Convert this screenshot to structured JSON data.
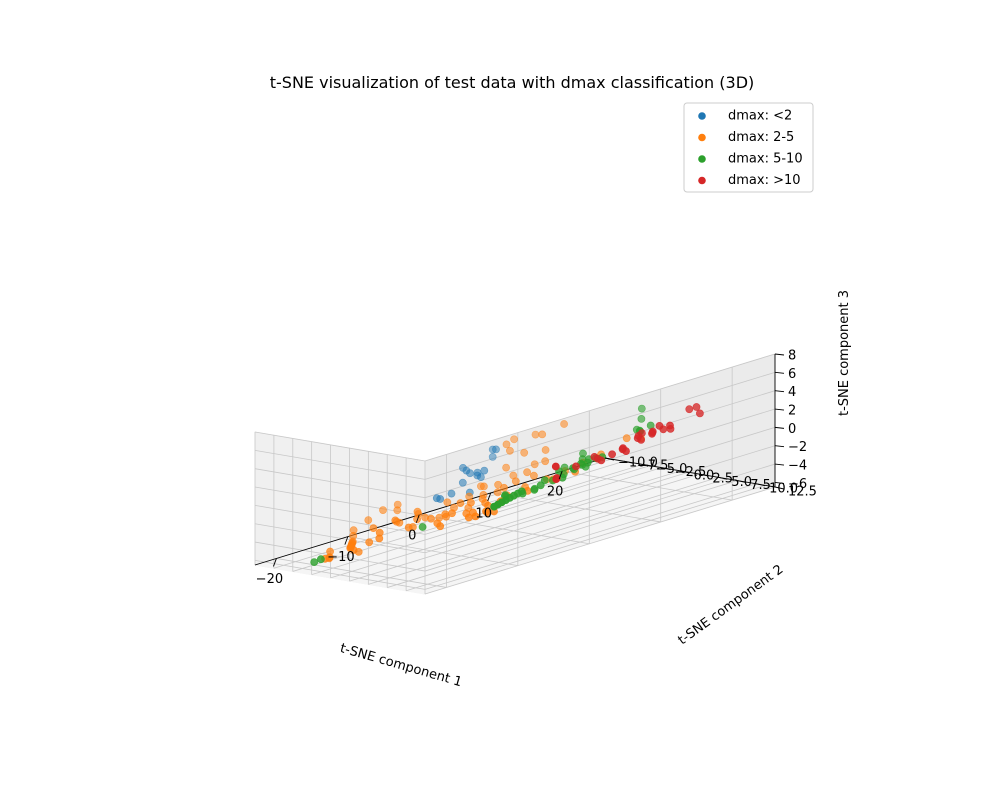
{
  "chart_data": {
    "type": "scatter",
    "projection": "3d",
    "title": "t-SNE visualization of test data with dmax classification (3D)",
    "xlabel": "t-SNE component 1",
    "ylabel": "t-SNE component 2",
    "zlabel": "t-SNE component 3",
    "xlim": [
      -23,
      26
    ],
    "ylim": [
      -10,
      12.5
    ],
    "zlim": [
      -6.5,
      8
    ],
    "x_ticks": [
      "−20",
      "−10",
      "0",
      "10",
      "20"
    ],
    "y_ticks": [
      "−10.0",
      "−7.5",
      "−5.0",
      "−2.5",
      "0.0",
      "2.5",
      "5.0",
      "7.5",
      "10.0",
      "12.5"
    ],
    "z_ticks": [
      "−6",
      "−4",
      "−2",
      "0",
      "2",
      "4",
      "6",
      "8"
    ],
    "grid": true,
    "legend_position": "top-right",
    "series": [
      {
        "name": "dmax: <2",
        "color": "#1f77b4",
        "points": [
          [
            -13.0,
            12.0,
            6.8
          ],
          [
            -12.0,
            11.5,
            6.5
          ],
          [
            -13.0,
            12.0,
            6.0
          ],
          [
            -14.5,
            9.5,
            4.8
          ],
          [
            -13.5,
            9.0,
            4.2
          ],
          [
            -13.0,
            10.0,
            4.0
          ],
          [
            -12.5,
            9.5,
            3.5
          ],
          [
            -12.0,
            9.5,
            3.2
          ],
          [
            -11.0,
            9.0,
            3.6
          ],
          [
            -13.0,
            9.0,
            3.8
          ],
          [
            -14.0,
            9.0,
            3.0
          ],
          [
            -12.5,
            8.5,
            1.5
          ],
          [
            -14.0,
            7.5,
            1.6
          ],
          [
            -15.0,
            6.5,
            1.2
          ],
          [
            -14.0,
            6.0,
            0.8
          ]
        ]
      },
      {
        "name": "dmax: 2-5",
        "color": "#ff7f0e",
        "points": [
          [
            -10.0,
            12.0,
            7.2
          ],
          [
            -7.0,
            12.0,
            7.0
          ],
          [
            -3.0,
            12.0,
            7.2
          ],
          [
            -10.0,
            11.0,
            6.5
          ],
          [
            -5.0,
            11.0,
            6.4
          ],
          [
            -9.0,
            10.5,
            5.5
          ],
          [
            -7.0,
            10.5,
            4.8
          ],
          [
            -4.0,
            10.5,
            4.4
          ],
          [
            -9.0,
            10.0,
            3.6
          ],
          [
            -8.0,
            10.0,
            2.5
          ],
          [
            -5.0,
            10.0,
            3.0
          ],
          [
            -12.0,
            9.5,
            2.2
          ],
          [
            -10.0,
            8.0,
            1.5
          ],
          [
            -8.0,
            8.0,
            1.2
          ],
          [
            -5.0,
            9.0,
            2.0
          ],
          [
            -3.0,
            9.5,
            2.8
          ],
          [
            -11.0,
            7.0,
            0.5
          ],
          [
            -9.0,
            7.0,
            0.2
          ],
          [
            -7.0,
            7.0,
            0.0
          ],
          [
            -5.0,
            7.5,
            0.8
          ],
          [
            -3.0,
            8.0,
            1.0
          ],
          [
            -13.0,
            6.0,
            0.2
          ],
          [
            -11.0,
            5.0,
            -1.0
          ],
          [
            -9.0,
            5.0,
            -1.5
          ],
          [
            -7.0,
            5.0,
            -1.0
          ],
          [
            -16.0,
            5.0,
            -0.5
          ],
          [
            -18.0,
            4.0,
            -1.0
          ],
          [
            -14.0,
            4.0,
            -1.5
          ],
          [
            -12.0,
            4.0,
            -2.0
          ],
          [
            -10.0,
            3.0,
            -2.5
          ],
          [
            -20.0,
            6.0,
            1.0
          ],
          [
            -22.0,
            6.0,
            1.5
          ],
          [
            -21.0,
            7.0,
            2.0
          ],
          [
            -23.0,
            5.0,
            0.5
          ],
          [
            -24.0,
            4.0,
            -0.5
          ],
          [
            -23.0,
            3.0,
            -1.5
          ],
          [
            -22.0,
            2.0,
            -2.5
          ],
          [
            -21.0,
            1.0,
            -3.0
          ],
          [
            -20.0,
            0.0,
            -3.5
          ],
          [
            -19.0,
            -1.0,
            -4.0
          ],
          [
            -18.0,
            -2.0,
            -4.5
          ],
          [
            -17.0,
            -3.0,
            -5.0
          ],
          [
            -16.0,
            -4.0,
            -5.5
          ],
          [
            -15.0,
            -4.5,
            -6.0
          ],
          [
            -17.0,
            0.0,
            -2.5
          ],
          [
            -15.0,
            1.0,
            -2.0
          ],
          [
            -13.0,
            2.0,
            -2.2
          ],
          [
            -16.0,
            2.5,
            -1.8
          ],
          [
            -14.0,
            3.0,
            -1.0
          ],
          [
            -18.0,
            -1.0,
            -5.0
          ],
          [
            -16.0,
            -1.5,
            -4.5
          ],
          [
            -14.0,
            -2.0,
            -4.0
          ],
          [
            -13.0,
            -3.0,
            -5.0
          ],
          [
            -20.0,
            -3.0,
            -5.5
          ],
          [
            -21.0,
            -2.0,
            -5.0
          ],
          [
            -22.0,
            -1.0,
            -4.0
          ],
          [
            -19.0,
            -4.5,
            -6.0
          ],
          [
            -12.0,
            0.5,
            -3.5
          ],
          [
            -10.0,
            1.0,
            -3.0
          ],
          [
            -11.0,
            -1.0,
            -4.0
          ],
          [
            -8.0,
            1.0,
            -3.0
          ],
          [
            -6.0,
            2.5,
            -2.0
          ],
          [
            -4.0,
            2.5,
            -2.5
          ],
          [
            -2.0,
            3.5,
            -2.0
          ],
          [
            0.0,
            4.0,
            -1.5
          ],
          [
            2.0,
            5.0,
            -1.0
          ],
          [
            4.0,
            5.5,
            -0.5
          ],
          [
            -4.0,
            0.0,
            -4.0
          ],
          [
            -2.0,
            -1.0,
            -4.5
          ],
          [
            0.0,
            -1.0,
            -5.0
          ],
          [
            2.0,
            -2.0,
            -5.5
          ],
          [
            4.0,
            -3.0,
            -5.0
          ],
          [
            3.0,
            -4.0,
            -6.0
          ],
          [
            1.0,
            -3.5,
            -6.0
          ],
          [
            -1.0,
            -2.5,
            -5.5
          ],
          [
            -2.0,
            1.0,
            -3.5
          ],
          [
            -6.0,
            0.0,
            -3.5
          ],
          [
            -7.0,
            -1.0,
            -4.5
          ],
          [
            -5.0,
            -2.5,
            -5.5
          ],
          [
            6.0,
            6.0,
            0.0
          ],
          [
            8.0,
            6.5,
            0.5
          ],
          [
            10.0,
            8.0,
            2.0
          ],
          [
            12.0,
            8.0,
            1.5
          ],
          [
            -8.0,
            3.0,
            -1.5
          ],
          [
            5.0,
            3.0,
            -2.0
          ],
          [
            7.0,
            4.0,
            -1.5
          ],
          [
            3.0,
            1.5,
            -3.0
          ],
          [
            -4.0,
            5.0,
            -0.5
          ]
        ]
      },
      {
        "name": "dmax: 5-10",
        "color": "#2ca02c",
        "points": [
          [
            10.0,
            10.0,
            5.5
          ],
          [
            11.0,
            9.0,
            4.0
          ],
          [
            13.0,
            6.5,
            2.0
          ],
          [
            14.0,
            6.0,
            1.5
          ],
          [
            16.0,
            5.5,
            1.6
          ],
          [
            15.0,
            5.0,
            1.2
          ],
          [
            6.0,
            6.0,
            1.0
          ],
          [
            7.0,
            5.0,
            0.0
          ],
          [
            5.0,
            4.5,
            -0.5
          ],
          [
            8.0,
            4.0,
            -1.0
          ],
          [
            9.0,
            3.5,
            -1.5
          ],
          [
            10.0,
            3.0,
            -1.0
          ],
          [
            7.0,
            2.5,
            -2.0
          ],
          [
            6.0,
            2.0,
            -2.5
          ],
          [
            4.0,
            1.5,
            -3.0
          ],
          [
            5.0,
            0.5,
            -3.5
          ],
          [
            7.0,
            0.0,
            -3.0
          ],
          [
            9.0,
            0.0,
            -2.5
          ],
          [
            11.0,
            1.0,
            -2.0
          ],
          [
            12.0,
            2.0,
            -1.5
          ],
          [
            10.0,
            -0.5,
            -3.5
          ],
          [
            8.0,
            -1.5,
            -4.0
          ],
          [
            6.0,
            -2.0,
            -4.5
          ],
          [
            3.0,
            -1.5,
            -4.0
          ],
          [
            2.0,
            -0.5,
            -3.5
          ],
          [
            12.0,
            -1.0,
            -3.0
          ],
          [
            13.0,
            0.0,
            -2.5
          ],
          [
            14.0,
            1.0,
            -2.0
          ],
          [
            9.0,
            2.0,
            -2.0
          ],
          [
            -8.0,
            -2.0,
            -4.8
          ],
          [
            -20.0,
            -5.0,
            -6.2
          ],
          [
            -18.0,
            -6.0,
            -6.5
          ],
          [
            8.0,
            -4.0,
            -5.0
          ],
          [
            8.5,
            -5.0,
            -5.5
          ],
          [
            9.0,
            -6.0,
            -6.0
          ],
          [
            9.5,
            -7.0,
            -6.5
          ],
          [
            10.0,
            -8.0,
            -7.0
          ],
          [
            10.5,
            -9.0,
            -7.5
          ],
          [
            11.0,
            -10.0,
            -8.0
          ],
          [
            11.0,
            -10.5,
            -8.3
          ]
        ]
      },
      {
        "name": "dmax: >10",
        "color": "#d62728",
        "points": [
          [
            23.0,
            4.0,
            1.5
          ],
          [
            24.0,
            4.0,
            1.5
          ],
          [
            25.0,
            3.5,
            0.5
          ],
          [
            18.0,
            2.0,
            -0.5
          ],
          [
            19.0,
            1.5,
            -0.5
          ],
          [
            20.0,
            2.0,
            -0.5
          ],
          [
            21.0,
            1.0,
            -1.0
          ],
          [
            22.0,
            1.0,
            -0.5
          ],
          [
            23.0,
            1.5,
            -1.0
          ],
          [
            20.0,
            0.0,
            -1.5
          ],
          [
            21.0,
            -0.5,
            -2.0
          ],
          [
            22.0,
            0.0,
            -1.5
          ],
          [
            24.0,
            0.5,
            -1.0
          ],
          [
            19.0,
            -1.0,
            -2.5
          ],
          [
            18.0,
            -1.5,
            -3.0
          ],
          [
            17.0,
            -2.0,
            -3.5
          ],
          [
            16.0,
            -1.5,
            -3.0
          ],
          [
            15.0,
            -1.0,
            -2.5
          ],
          [
            14.0,
            -2.5,
            -3.5
          ],
          [
            20.0,
            -2.0,
            -3.0
          ],
          [
            21.0,
            -2.5,
            -3.5
          ],
          [
            15.0,
            -6.0,
            -5.5
          ],
          [
            16.0,
            -7.0,
            -6.0
          ],
          [
            17.0,
            -8.0,
            -5.0
          ],
          [
            22.0,
            1.5,
            -0.8
          ]
        ]
      }
    ]
  }
}
